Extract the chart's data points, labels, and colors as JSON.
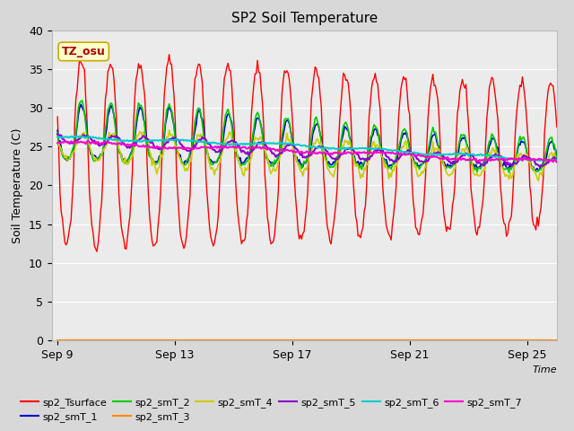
{
  "title": "SP2 Soil Temperature",
  "ylabel": "Soil Temperature (C)",
  "xlabel": "Time",
  "ylim": [
    0,
    40
  ],
  "yticks": [
    0,
    5,
    10,
    15,
    20,
    25,
    30,
    35,
    40
  ],
  "xtick_labels": [
    "Sep 9",
    "Sep 13",
    "Sep 17",
    "Sep 21",
    "Sep 25"
  ],
  "xtick_positions": [
    0,
    4,
    8,
    12,
    16
  ],
  "bg_color": "#d8d8d8",
  "plot_bg": "#ebebeb",
  "annotation_text": "TZ_osu",
  "annotation_color": "#aa0000",
  "annotation_bg": "#ffffcc",
  "annotation_border": "#ccaa00",
  "series_colors": {
    "sp2_Tsurface": "#ff0000",
    "sp2_smT_1": "#0000cc",
    "sp2_smT_2": "#00cc00",
    "sp2_smT_3": "#ff8800",
    "sp2_smT_4": "#cccc00",
    "sp2_smT_5": "#8800cc",
    "sp2_smT_6": "#00cccc",
    "sp2_smT_7": "#ff00cc"
  }
}
